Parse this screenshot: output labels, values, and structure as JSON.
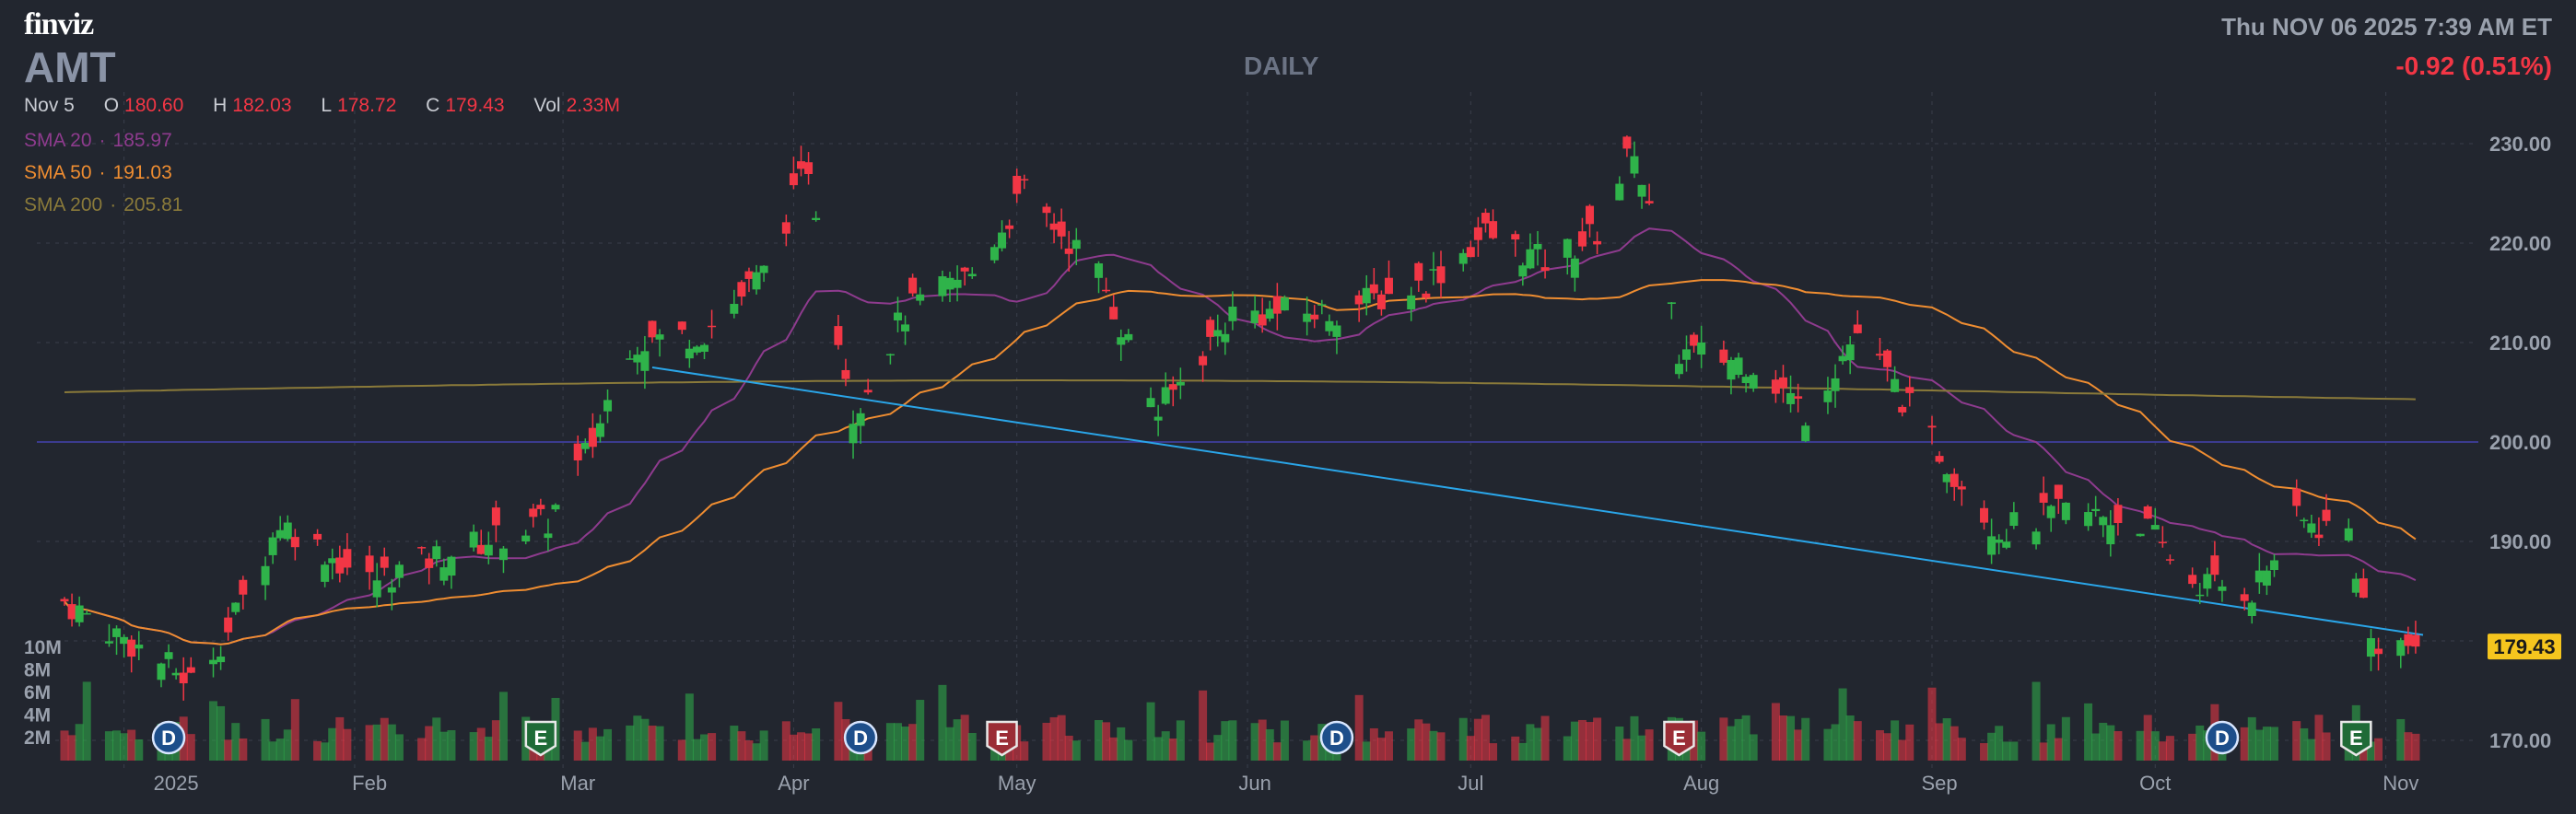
{
  "header": {
    "logo": "finviz",
    "ticker": "AMT",
    "period": "DAILY",
    "datetime": "Thu NOV 06 2025 7:39 AM ET",
    "change": "-0.92 (0.51%)",
    "last_date": "Nov 5",
    "open_label": "O",
    "open": "180.60",
    "high_label": "H",
    "high": "182.03",
    "low_label": "L",
    "low": "178.72",
    "close_label": "C",
    "close": "179.43",
    "vol_label": "Vol",
    "vol": "2.33M"
  },
  "indicators": {
    "sma20_label": "SMA 20",
    "sma20": "185.97",
    "sma50_label": "SMA 50",
    "sma50": "191.03",
    "sma200_label": "SMA 200",
    "sma200": "205.81"
  },
  "colors": {
    "background": "#22262f",
    "up": "#2fb34a",
    "down": "#f23645",
    "sma20": "#8e3b8e",
    "sma50": "#ef8d31",
    "sma200": "#8a7a3a",
    "trendline": "#2aa5e8",
    "horizontal_line": "#3b3b8f",
    "price_tag": "#f5c51e"
  },
  "chart_data": {
    "type": "candlestick",
    "title": "DAILY",
    "ylim": [
      170,
      234
    ],
    "y_ticks": [
      "170.00",
      "180.00",
      "190.00",
      "200.00",
      "210.00",
      "220.00",
      "230.00"
    ],
    "volume_ticks": [
      "2M",
      "4M",
      "6M",
      "8M",
      "10M"
    ],
    "x_ticks": [
      "2025",
      "Feb",
      "Mar",
      "Apr",
      "May",
      "Jun",
      "Jul",
      "Aug",
      "Sep",
      "Oct",
      "Nov"
    ],
    "last_price": "179.43",
    "horizontal_line": 200,
    "trendline": {
      "start": [
        "2025-03-13",
        207.5
      ],
      "end": [
        "2025-11-06",
        180.6
      ]
    },
    "date_range": [
      "2024-12-24",
      "2025-11-05"
    ],
    "monthly_anchors": [
      {
        "date": "2024-12-24",
        "close": 184.0
      },
      {
        "date": "2025-01-10",
        "close": 176.0
      },
      {
        "date": "2025-01-15",
        "close": 181.0
      },
      {
        "date": "2025-01-22",
        "close": 192.0
      },
      {
        "date": "2025-02-03",
        "close": 186.0
      },
      {
        "date": "2025-02-14",
        "close": 189.0
      },
      {
        "date": "2025-02-27",
        "close": 192.0
      },
      {
        "date": "2025-03-05",
        "close": 200.0
      },
      {
        "date": "2025-03-10",
        "close": 210.0
      },
      {
        "date": "2025-03-20",
        "close": 211.0
      },
      {
        "date": "2025-03-28",
        "close": 217.0
      },
      {
        "date": "2025-04-03",
        "close": 228.0
      },
      {
        "date": "2025-04-09",
        "close": 203.0
      },
      {
        "date": "2025-04-16",
        "close": 213.0
      },
      {
        "date": "2025-04-25",
        "close": 217.0
      },
      {
        "date": "2025-05-02",
        "close": 225.0
      },
      {
        "date": "2025-05-12",
        "close": 217.0
      },
      {
        "date": "2025-05-20",
        "close": 203.0
      },
      {
        "date": "2025-05-30",
        "close": 213.0
      },
      {
        "date": "2025-06-12",
        "close": 213.0
      },
      {
        "date": "2025-06-25",
        "close": 216.0
      },
      {
        "date": "2025-07-03",
        "close": 221.0
      },
      {
        "date": "2025-07-11",
        "close": 218.0
      },
      {
        "date": "2025-07-18",
        "close": 221.0
      },
      {
        "date": "2025-07-23",
        "close": 230.0
      },
      {
        "date": "2025-07-29",
        "close": 209.0
      },
      {
        "date": "2025-08-08",
        "close": 208.0
      },
      {
        "date": "2025-08-15",
        "close": 203.0
      },
      {
        "date": "2025-08-22",
        "close": 211.0
      },
      {
        "date": "2025-09-02",
        "close": 199.0
      },
      {
        "date": "2025-09-10",
        "close": 191.0
      },
      {
        "date": "2025-09-19",
        "close": 193.0
      },
      {
        "date": "2025-09-29",
        "close": 192.0
      },
      {
        "date": "2025-10-06",
        "close": 186.0
      },
      {
        "date": "2025-10-14",
        "close": 185.0
      },
      {
        "date": "2025-10-20",
        "close": 192.0
      },
      {
        "date": "2025-10-27",
        "close": 191.0
      },
      {
        "date": "2025-10-30",
        "close": 180.0
      },
      {
        "date": "2025-11-05",
        "close": 179.43
      }
    ],
    "series": [
      {
        "name": "SMA 20",
        "last": 185.97
      },
      {
        "name": "SMA 50",
        "last": 191.03
      },
      {
        "name": "SMA 200",
        "last": 205.81
      }
    ],
    "events": [
      {
        "label": "D",
        "date": "2025-01-07"
      },
      {
        "label": "E",
        "date": "2025-02-26"
      },
      {
        "label": "D",
        "date": "2025-04-10"
      },
      {
        "label": "E",
        "date": "2025-04-29"
      },
      {
        "label": "D",
        "date": "2025-06-13"
      },
      {
        "label": "E",
        "date": "2025-07-29"
      },
      {
        "label": "D",
        "date": "2025-10-10"
      },
      {
        "label": "E",
        "date": "2025-10-28"
      }
    ]
  }
}
